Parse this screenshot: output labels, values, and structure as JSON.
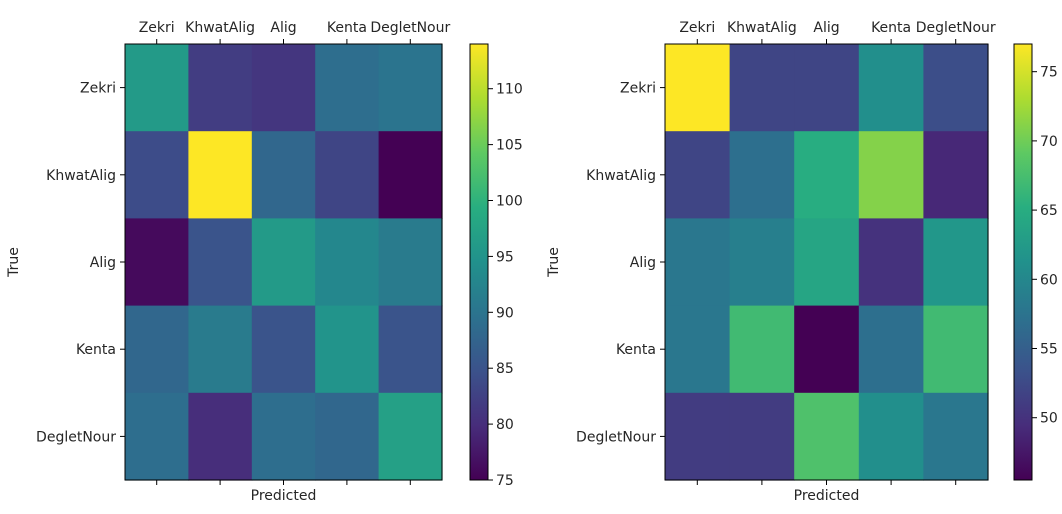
{
  "chart_data": [
    {
      "type": "heatmap",
      "title": "",
      "xlabel": "Predicted",
      "ylabel": "True",
      "x_categories": [
        "Zekri",
        "KhwatAlig",
        "Alig",
        "Kenta",
        "DegletNour"
      ],
      "y_categories": [
        "Zekri",
        "KhwatAlig",
        "Alig",
        "Kenta",
        "DegletNour"
      ],
      "x_ticks_position": "top",
      "colormap": "viridis",
      "vmin": 75,
      "vmax": 114,
      "matrix": [
        [
          96,
          82,
          81,
          89,
          90
        ],
        [
          84,
          114,
          88,
          83,
          75
        ],
        [
          76,
          85,
          96,
          93,
          91
        ],
        [
          88,
          91,
          85,
          95,
          85
        ],
        [
          89,
          80,
          89,
          88,
          97
        ]
      ],
      "colorbar": {
        "ticks": [
          75,
          80,
          85,
          90,
          95,
          100,
          105,
          110
        ]
      }
    },
    {
      "type": "heatmap",
      "title": "",
      "xlabel": "Predicted",
      "ylabel": "True",
      "x_categories": [
        "Zekri",
        "KhwatAlig",
        "Alig",
        "Kenta",
        "DegletNour"
      ],
      "y_categories": [
        "Zekri",
        "KhwatAlig",
        "Alig",
        "Kenta",
        "DegletNour"
      ],
      "x_ticks_position": "top",
      "colormap": "viridis",
      "vmin": 45.5,
      "vmax": 77,
      "matrix": [
        [
          77,
          52,
          52,
          61,
          53
        ],
        [
          52,
          57,
          65,
          71,
          49
        ],
        [
          58,
          59,
          64,
          50,
          62
        ],
        [
          58,
          67,
          45.5,
          57,
          67
        ],
        [
          51,
          51,
          68,
          61,
          58
        ]
      ],
      "colorbar": {
        "ticks": [
          50,
          55,
          60,
          65,
          70,
          75
        ]
      }
    }
  ]
}
